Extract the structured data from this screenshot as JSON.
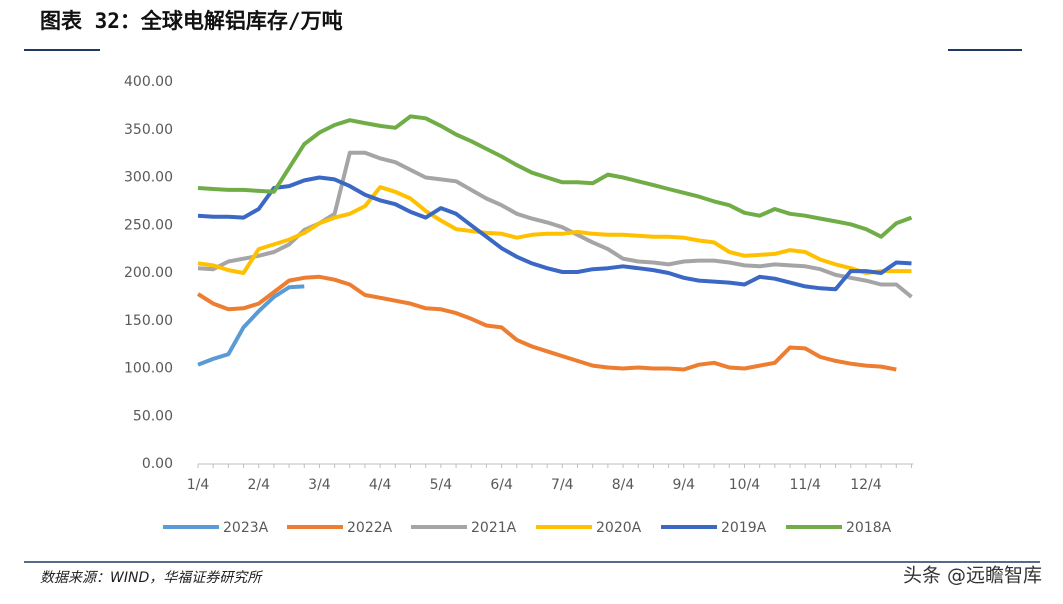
{
  "chart_data": {
    "type": "line",
    "title": "图表 32：全球电解铝库存/万吨",
    "source": "数据来源：WIND，华福证券研究所",
    "watermark": "头条 @远瞻智库",
    "categories": [
      "1/4",
      null,
      null,
      null,
      "2/4",
      null,
      null,
      null,
      "3/4",
      null,
      null,
      null,
      "4/4",
      null,
      null,
      null,
      "5/4",
      null,
      null,
      null,
      "6/4",
      null,
      null,
      null,
      "7/4",
      null,
      null,
      null,
      "8/4",
      null,
      null,
      null,
      "9/4",
      null,
      null,
      null,
      "10/4",
      null,
      null,
      null,
      "11/4",
      null,
      null,
      null,
      "12/4",
      null,
      null,
      null
    ],
    "ylim": [
      0,
      400
    ],
    "yticks": [
      {
        "value": 0,
        "label": "0.00"
      },
      {
        "value": 50,
        "label": "50.00"
      },
      {
        "value": 100,
        "label": "100.00"
      },
      {
        "value": 150,
        "label": "150.00"
      },
      {
        "value": 200,
        "label": "200.00"
      },
      {
        "value": 250,
        "label": "250.00"
      },
      {
        "value": 300,
        "label": "300.00"
      },
      {
        "value": 350,
        "label": "350.00"
      },
      {
        "value": 400,
        "label": "400.00"
      }
    ],
    "grid": false,
    "legend": "bottom",
    "series": [
      {
        "name": "2023A",
        "color": "#5b9bd5",
        "values": [
          104,
          110,
          115,
          143,
          160,
          175,
          185,
          186,
          null,
          null,
          null,
          null,
          null,
          null,
          null,
          null,
          null,
          null,
          null,
          null,
          null,
          null,
          null,
          null,
          null,
          null,
          null,
          null,
          null,
          null,
          null,
          null,
          null,
          null,
          null,
          null,
          null,
          null,
          null,
          null,
          null,
          null,
          null,
          null,
          null,
          null,
          null,
          null
        ]
      },
      {
        "name": "2022A",
        "color": "#ed7d31",
        "values": [
          178,
          168,
          162,
          163,
          168,
          180,
          192,
          195,
          196,
          193,
          188,
          177,
          174,
          171,
          168,
          163,
          162,
          158,
          152,
          145,
          143,
          130,
          123,
          118,
          113,
          108,
          103,
          101,
          100,
          101,
          100,
          100,
          99,
          104,
          106,
          101,
          100,
          103,
          106,
          122,
          121,
          112,
          108,
          105,
          103,
          102,
          99,
          null
        ]
      },
      {
        "name": "2021A",
        "color": "#a5a5a5",
        "values": [
          205,
          204,
          212,
          215,
          218,
          222,
          230,
          245,
          252,
          262,
          326,
          326,
          320,
          316,
          308,
          300,
          298,
          296,
          287,
          278,
          271,
          262,
          257,
          253,
          248,
          240,
          232,
          225,
          215,
          212,
          211,
          209,
          212,
          213,
          213,
          211,
          208,
          207,
          209,
          208,
          207,
          204,
          198,
          195,
          192,
          188,
          188,
          175
        ]
      },
      {
        "name": "2020A",
        "color": "#ffc000",
        "values": [
          210,
          208,
          203,
          200,
          225,
          230,
          235,
          242,
          252,
          258,
          262,
          270,
          290,
          285,
          278,
          265,
          255,
          246,
          244,
          242,
          241,
          237,
          240,
          241,
          241,
          243,
          241,
          240,
          240,
          239,
          238,
          238,
          237,
          234,
          232,
          222,
          218,
          219,
          220,
          224,
          222,
          214,
          209,
          205,
          200,
          202,
          202,
          202
        ]
      },
      {
        "name": "2019A",
        "color": "#3a68c4",
        "values": [
          260,
          259,
          259,
          258,
          267,
          289,
          291,
          297,
          300,
          298,
          291,
          282,
          276,
          272,
          264,
          258,
          268,
          262,
          250,
          238,
          226,
          217,
          210,
          205,
          201,
          201,
          204,
          205,
          207,
          205,
          203,
          200,
          195,
          192,
          191,
          190,
          188,
          196,
          194,
          190,
          186,
          184,
          183,
          202,
          202,
          200,
          211,
          210
        ]
      },
      {
        "name": "2018A",
        "color": "#70ad47",
        "values": [
          289,
          288,
          287,
          287,
          286,
          285,
          310,
          335,
          347,
          355,
          360,
          357,
          354,
          352,
          364,
          362,
          354,
          345,
          338,
          330,
          322,
          313,
          305,
          300,
          295,
          295,
          294,
          303,
          300,
          296,
          292,
          288,
          284,
          280,
          275,
          271,
          263,
          260,
          267,
          262,
          260,
          257,
          254,
          251,
          246,
          238,
          252,
          258
        ]
      }
    ]
  }
}
